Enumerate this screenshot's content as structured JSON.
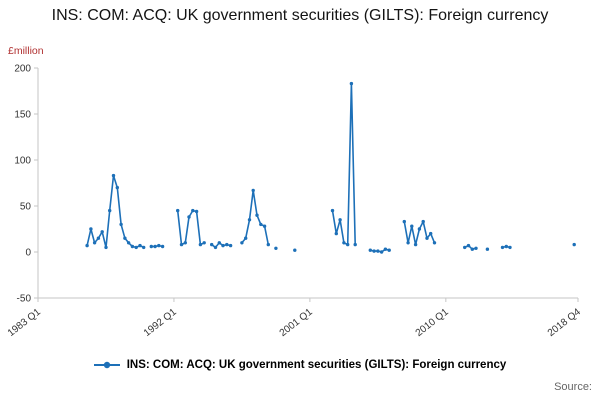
{
  "page": {
    "title": "INS: COM: ACQ: UK government securities (GILTS): Foreign currency"
  },
  "y_axis": {
    "unit_label": "£million"
  },
  "legend": {
    "label": "INS: COM: ACQ: UK government securities (GILTS): Foreign currency"
  },
  "footer": {
    "source_label": "Source:"
  },
  "colors": {
    "series": "#1d70b8",
    "axis_line": "#c6c6c6",
    "tick_text": "#333333",
    "unit_label": "#b03030",
    "title_text": "#141414"
  },
  "chart_data": {
    "type": "line",
    "title": "INS: COM: ACQ: UK government securities (GILTS): Foreign currency",
    "xlabel": "",
    "ylabel": "£million",
    "ylim": [
      -50,
      200
    ],
    "yticks": [
      -50,
      0,
      50,
      100,
      150,
      200
    ],
    "grid": false,
    "legend_position": "bottom",
    "x_axis": {
      "start": "1983 Q1",
      "end": "2018 Q4",
      "tick_labels": [
        "1983 Q1",
        "1992 Q1",
        "2001 Q1",
        "2010 Q1",
        "2018 Q4"
      ]
    },
    "series": [
      {
        "name": "INS: COM: ACQ: UK government securities (GILTS): Foreign currency",
        "segments": [
          [
            [
              "1986 Q2",
              7
            ],
            [
              "1986 Q3",
              25
            ],
            [
              "1986 Q4",
              10
            ],
            [
              "1987 Q1",
              15
            ],
            [
              "1987 Q2",
              22
            ],
            [
              "1987 Q3",
              5
            ],
            [
              "1987 Q4",
              45
            ],
            [
              "1988 Q1",
              83
            ],
            [
              "1988 Q2",
              70
            ],
            [
              "1988 Q3",
              30
            ],
            [
              "1988 Q4",
              15
            ],
            [
              "1989 Q1",
              10
            ],
            [
              "1989 Q2",
              6
            ],
            [
              "1989 Q3",
              5
            ],
            [
              "1989 Q4",
              7
            ],
            [
              "1990 Q1",
              5
            ]
          ],
          [
            [
              "1990 Q3",
              6
            ],
            [
              "1990 Q4",
              6
            ],
            [
              "1991 Q1",
              7
            ],
            [
              "1991 Q2",
              6
            ]
          ],
          [
            [
              "1992 Q2",
              45
            ],
            [
              "1992 Q3",
              8
            ],
            [
              "1992 Q4",
              10
            ],
            [
              "1993 Q1",
              38
            ],
            [
              "1993 Q2",
              45
            ],
            [
              "1993 Q3",
              44
            ],
            [
              "1993 Q4",
              8
            ],
            [
              "1994 Q1",
              10
            ]
          ],
          [
            [
              "1994 Q3",
              8
            ],
            [
              "1994 Q4",
              5
            ],
            [
              "1995 Q1",
              10
            ],
            [
              "1995 Q2",
              7
            ],
            [
              "1995 Q3",
              8
            ],
            [
              "1995 Q4",
              7
            ]
          ],
          [
            [
              "1996 Q3",
              10
            ],
            [
              "1996 Q4",
              15
            ],
            [
              "1997 Q1",
              35
            ],
            [
              "1997 Q2",
              67
            ],
            [
              "1997 Q3",
              40
            ],
            [
              "1997 Q4",
              30
            ],
            [
              "1998 Q1",
              28
            ],
            [
              "1998 Q2",
              8
            ]
          ],
          [
            [
              "1998 Q4",
              4
            ]
          ],
          [
            [
              "2000 Q1",
              2
            ]
          ],
          [
            [
              "2002 Q3",
              45
            ],
            [
              "2002 Q4",
              20
            ],
            [
              "2003 Q1",
              35
            ],
            [
              "2003 Q2",
              10
            ],
            [
              "2003 Q3",
              8
            ],
            [
              "2003 Q4",
              183
            ],
            [
              "2004 Q1",
              8
            ]
          ],
          [
            [
              "2005 Q1",
              2
            ],
            [
              "2005 Q2",
              1
            ],
            [
              "2005 Q3",
              1
            ],
            [
              "2005 Q4",
              0
            ],
            [
              "2006 Q1",
              3
            ],
            [
              "2006 Q2",
              2
            ]
          ],
          [
            [
              "2007 Q2",
              33
            ],
            [
              "2007 Q3",
              10
            ],
            [
              "2007 Q4",
              28
            ],
            [
              "2008 Q1",
              8
            ],
            [
              "2008 Q2",
              25
            ],
            [
              "2008 Q3",
              33
            ],
            [
              "2008 Q4",
              15
            ],
            [
              "2009 Q1",
              20
            ],
            [
              "2009 Q2",
              10
            ]
          ],
          [
            [
              "2011 Q2",
              5
            ],
            [
              "2011 Q3",
              7
            ],
            [
              "2011 Q4",
              3
            ],
            [
              "2012 Q1",
              4
            ]
          ],
          [
            [
              "2012 Q4",
              3
            ]
          ],
          [
            [
              "2013 Q4",
              5
            ],
            [
              "2014 Q1",
              6
            ],
            [
              "2014 Q2",
              5
            ]
          ],
          [
            [
              "2018 Q3",
              8
            ]
          ]
        ]
      }
    ]
  }
}
